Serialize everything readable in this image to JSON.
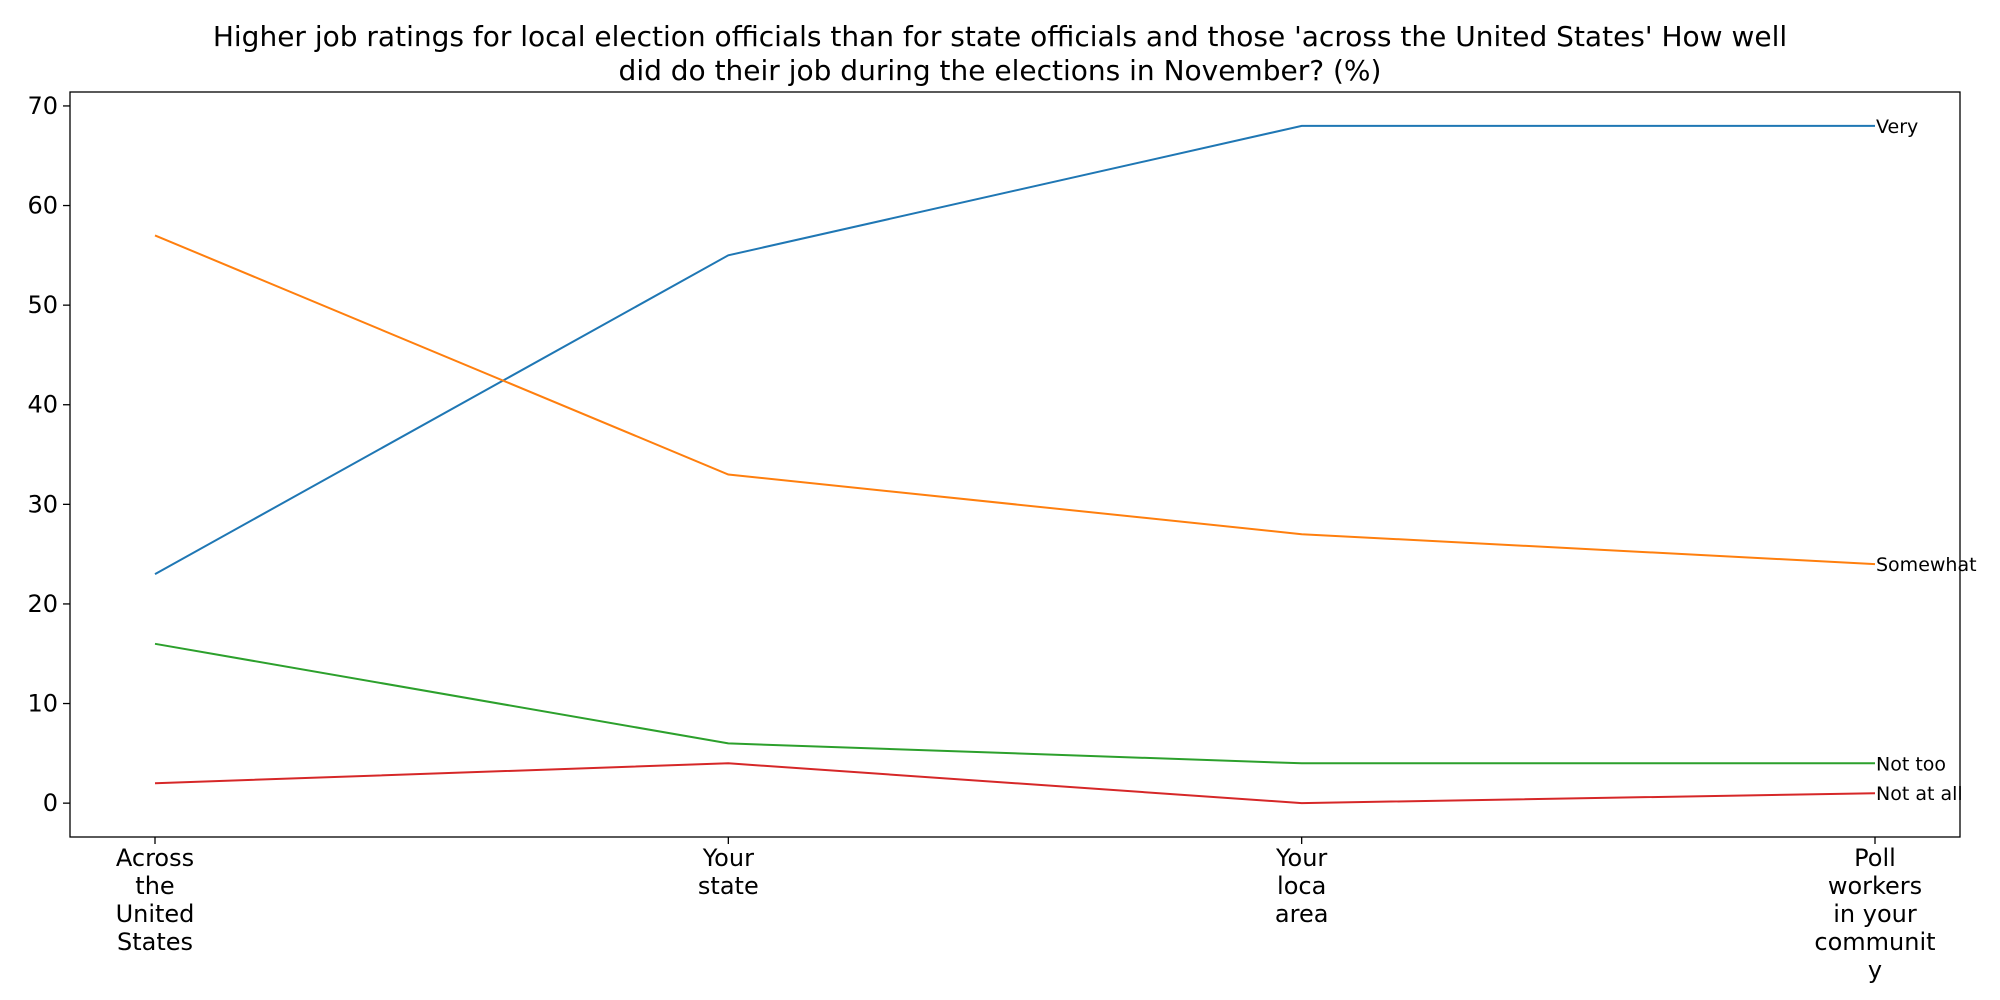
{
  "chart_data": {
    "type": "line",
    "title_lines": [
      "Higher job ratings for local election officials than for state officials and those 'across the United States' How well",
      "did do their job during the elections in November? (%)"
    ],
    "categories": [
      [
        "Across",
        "the",
        "United",
        "States"
      ],
      [
        "Your",
        "state"
      ],
      [
        "Your",
        "loca",
        "area"
      ],
      [
        "Poll",
        "workers",
        "in your",
        "communit",
        "y"
      ]
    ],
    "y_ticks": [
      0,
      10,
      20,
      30,
      40,
      50,
      60,
      70
    ],
    "ylim": [
      -3.4,
      71.4
    ],
    "grid": false,
    "legend": "inline labels at line ends",
    "series": [
      {
        "name": "Very",
        "color": "#1f77b4",
        "values": [
          23,
          55,
          68,
          68
        ]
      },
      {
        "name": "Somewhat",
        "color": "#ff7f0e",
        "values": [
          57,
          33,
          27,
          24
        ]
      },
      {
        "name": "Not too",
        "color": "#2ca02c",
        "values": [
          16,
          6,
          4,
          4
        ]
      },
      {
        "name": "Not at all",
        "color": "#d62728",
        "values": [
          2,
          4,
          0,
          1
        ]
      }
    ]
  }
}
